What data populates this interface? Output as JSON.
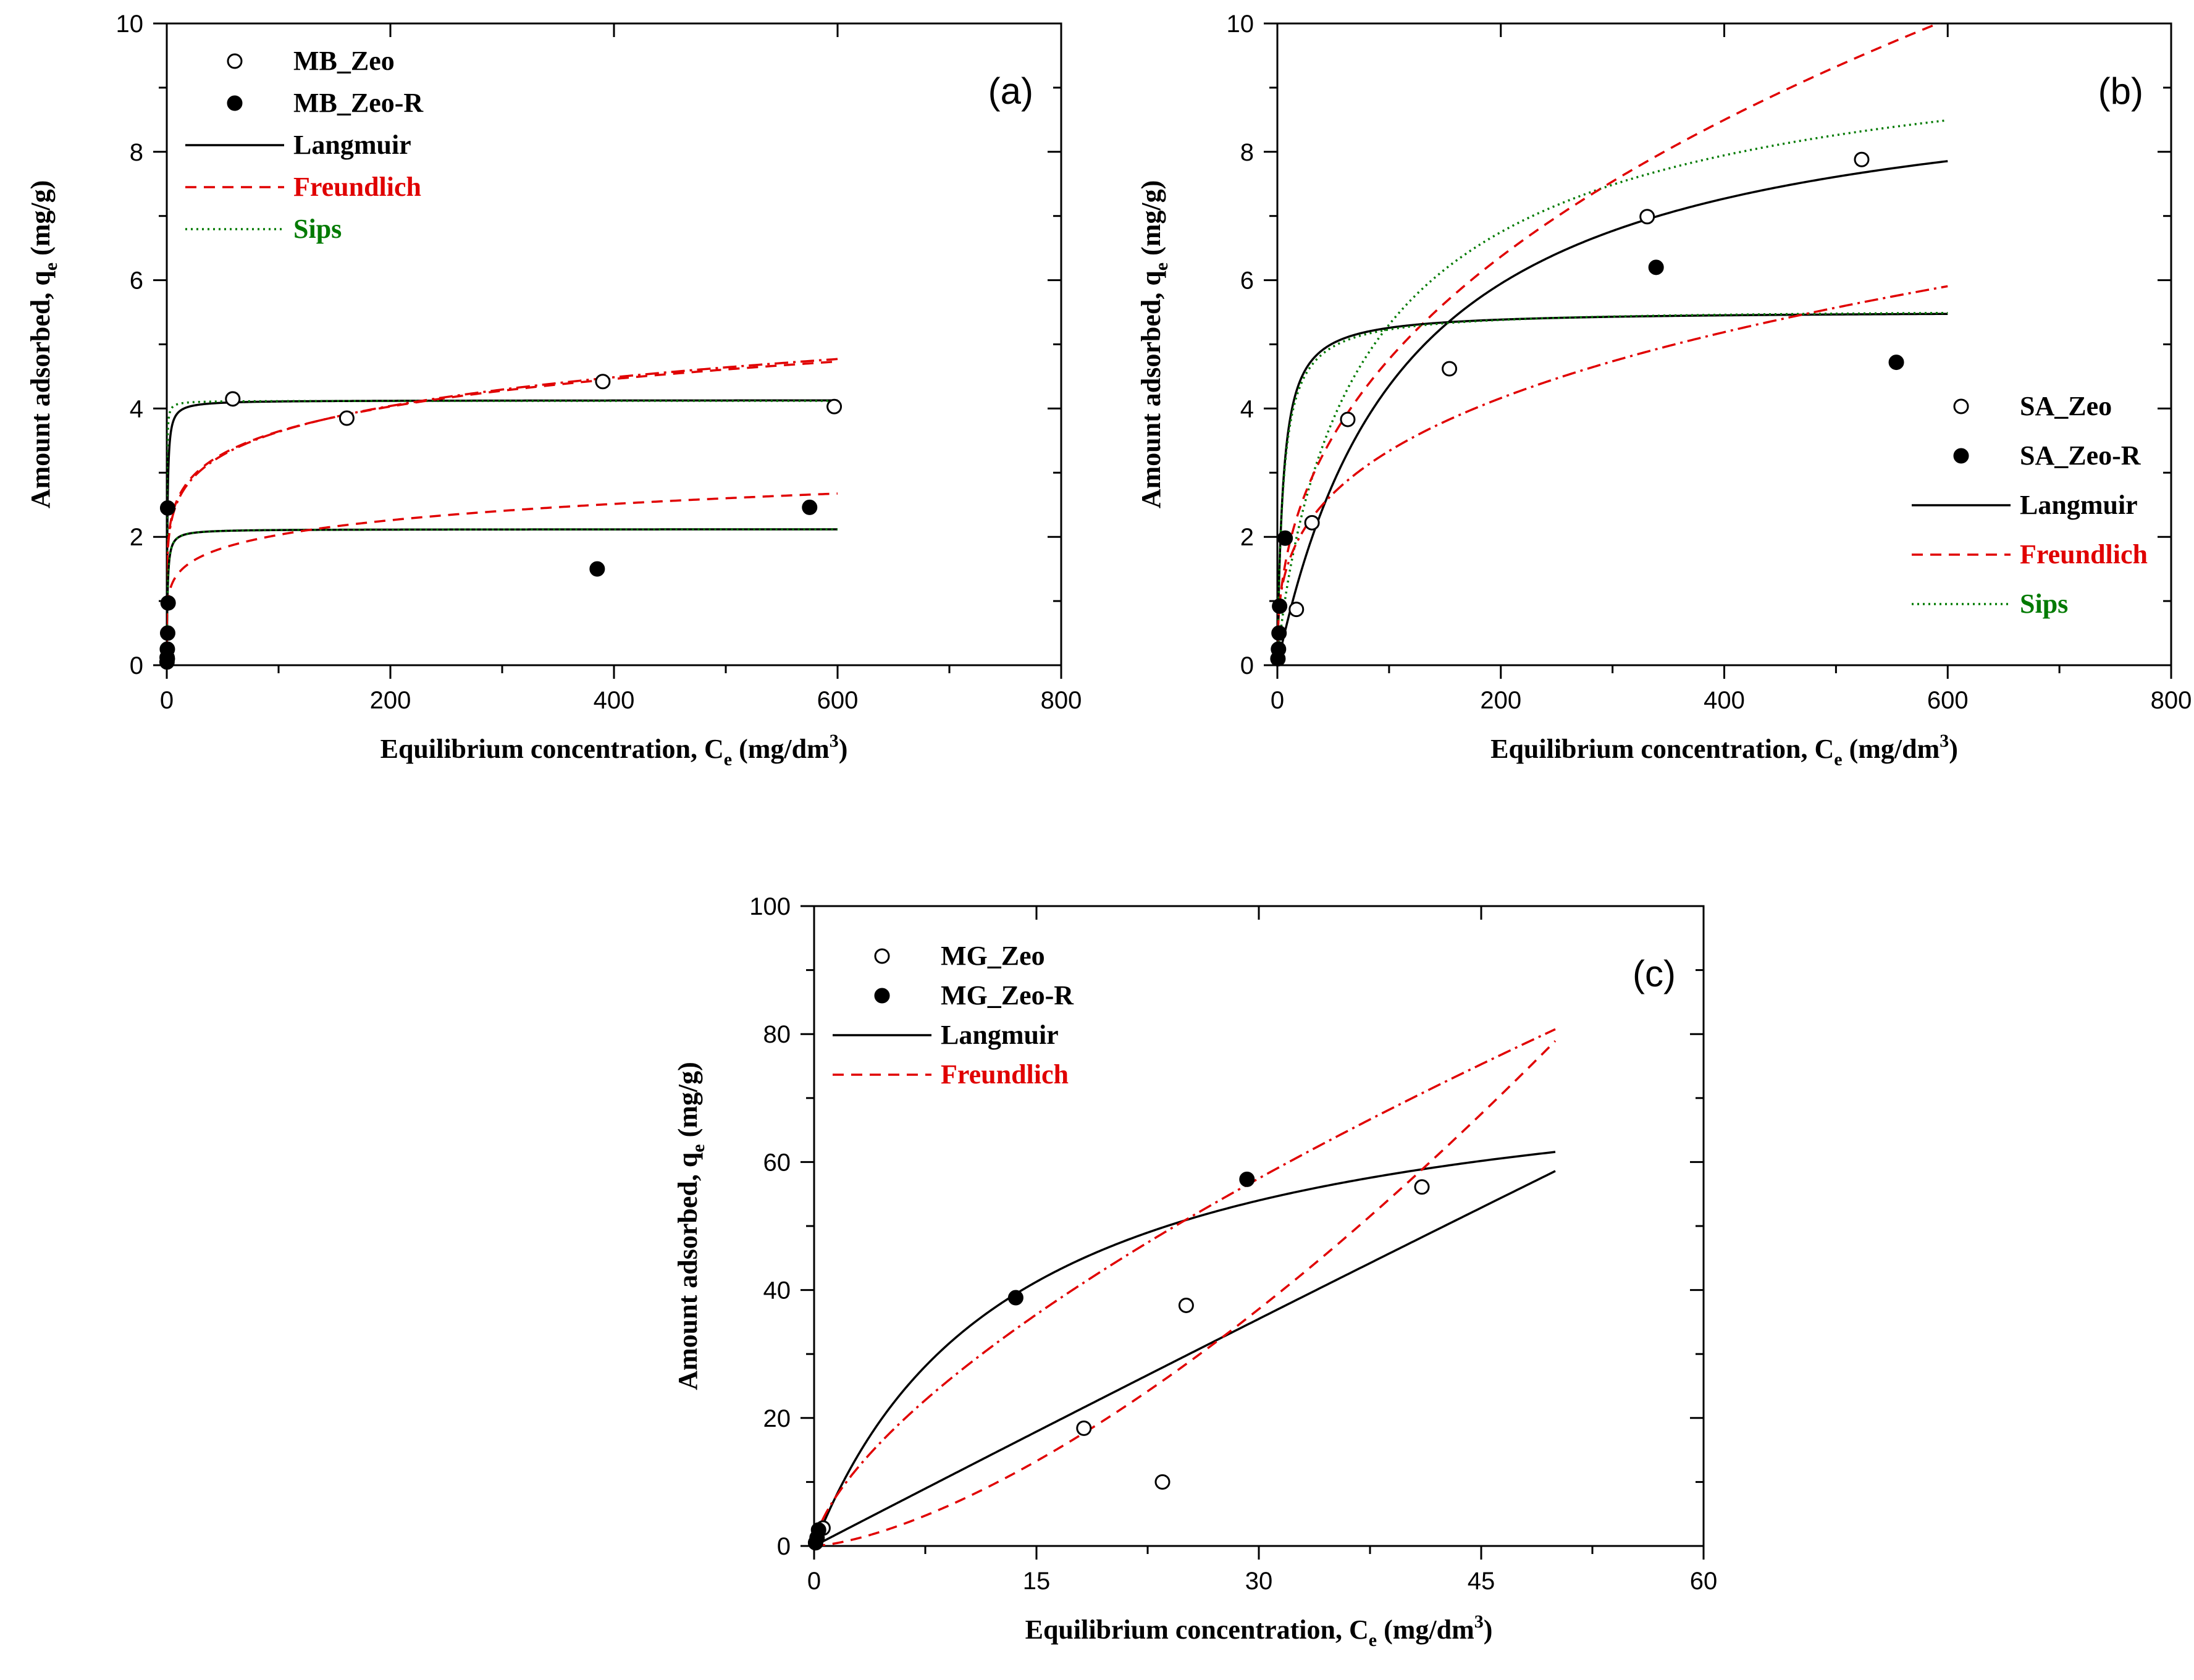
{
  "chart_data": [
    {
      "type": "scatter",
      "panel_label": "(a)",
      "xlabel": "Equilibrium concentration, C",
      "xlabel_sub": "e",
      "xlabel_unit": " (mg/dm",
      "xlabel_sup": "3",
      "xlabel_end": ")",
      "ylabel": "Amount adsorbed, q",
      "ylabel_sub": "e",
      "ylabel_unit": " (mg/g)",
      "xlim": [
        0,
        800
      ],
      "ylim": [
        0,
        10
      ],
      "xticks": [
        "0",
        "200",
        "400",
        "600",
        "800"
      ],
      "yticks": [
        "0",
        "2",
        "4",
        "6",
        "8",
        "10"
      ],
      "legend_position": "top-left",
      "legend": [
        {
          "label": "MB_Zeo",
          "kind": "open-marker",
          "color": "#000000"
        },
        {
          "label": "MB_Zeo-R",
          "kind": "filled-marker",
          "color": "#000000"
        },
        {
          "label": "Langmuir",
          "kind": "solid-line",
          "color": "#000000"
        },
        {
          "label": "Freundlich",
          "kind": "dashed-line",
          "color": "#e00000"
        },
        {
          "label": "Sips",
          "kind": "dotted-line",
          "color": "#007a00"
        }
      ],
      "series": [
        {
          "name": "MB_Zeo",
          "marker": "open",
          "x": [
            0.5,
            59,
            161,
            390,
            597
          ],
          "y": [
            0.1,
            4.15,
            3.85,
            4.42,
            4.03
          ]
        },
        {
          "name": "MB_Zeo-R",
          "marker": "filled",
          "x": [
            0.2,
            0.3,
            0.5,
            0.8,
            1.2,
            0.8,
            575,
            385
          ],
          "y": [
            0.05,
            0.12,
            0.25,
            0.5,
            0.97,
            2.45,
            2.46,
            1.5
          ]
        }
      ],
      "fits": [
        {
          "name": "Langmuir",
          "model": "langmuir",
          "params": {
            "qm": 4.13,
            "K": 2.0
          },
          "color": "#000000",
          "dash": ""
        },
        {
          "name": "Sips",
          "model": "sips",
          "params": {
            "qm": 4.12,
            "K": 8.0,
            "n": 1.0
          },
          "color": "#007a00",
          "dash": "3 6"
        },
        {
          "name": "Freundlich",
          "model": "freundlich",
          "params": {
            "K": 1.86,
            "n": 6.85
          },
          "color": "#e00000",
          "dash": "18 12"
        },
        {
          "name": "Freundlich",
          "model": "freundlich",
          "params": {
            "K": 1.81,
            "n": 6.6
          },
          "color": "#e00000",
          "dash": "22 8 4 8"
        },
        {
          "name": "Langmuir",
          "model": "langmuir",
          "params": {
            "qm": 2.12,
            "K": 1.5
          },
          "color": "#000000",
          "dash": ""
        },
        {
          "name": "Sips",
          "model": "sips",
          "params": {
            "qm": 2.12,
            "K": 1.5,
            "n": 1.0
          },
          "color": "#007a00",
          "dash": "3 6"
        },
        {
          "name": "Freundlich",
          "model": "freundlich",
          "params": {
            "K": 1.0,
            "n": 6.5
          },
          "color": "#e00000",
          "dash": "18 12"
        }
      ]
    },
    {
      "type": "scatter",
      "panel_label": "(b)",
      "xlabel": "Equilibrium concentration, C",
      "xlabel_sub": "e",
      "xlabel_unit": " (mg/dm",
      "xlabel_sup": "3",
      "xlabel_end": ")",
      "ylabel": "Amount adsorbed, q",
      "ylabel_sub": "e",
      "ylabel_unit": " (mg/g)",
      "xlim": [
        0,
        800
      ],
      "ylim": [
        0,
        10
      ],
      "xticks": [
        "0",
        "200",
        "400",
        "600",
        "800"
      ],
      "yticks": [
        "0",
        "2",
        "4",
        "6",
        "8",
        "10"
      ],
      "legend_position": "bottom-right",
      "legend": [
        {
          "label": "SA_Zeo",
          "kind": "open-marker",
          "color": "#000000"
        },
        {
          "label": "SA_Zeo-R",
          "kind": "filled-marker",
          "color": "#000000"
        },
        {
          "label": "Langmuir",
          "kind": "solid-line",
          "color": "#000000"
        },
        {
          "label": "Freundlich",
          "kind": "dashed-line",
          "color": "#e00000"
        },
        {
          "label": "Sips",
          "kind": "dotted-line",
          "color": "#007a00"
        }
      ],
      "series": [
        {
          "name": "SA_Zeo",
          "marker": "open",
          "x": [
            17,
            31,
            63,
            154,
            331,
            523
          ],
          "y": [
            0.87,
            2.22,
            3.83,
            4.62,
            6.99,
            7.88
          ]
        },
        {
          "name": "SA_Zeo-R",
          "marker": "filled",
          "x": [
            0.5,
            1.0,
            1.5,
            2.0,
            7,
            339,
            554
          ],
          "y": [
            0.1,
            0.25,
            0.5,
            0.92,
            1.98,
            6.2,
            4.72
          ]
        }
      ],
      "fits": [
        {
          "name": "Langmuir",
          "model": "langmuir",
          "params": {
            "qm": 9.36,
            "K": 0.0087
          },
          "color": "#000000",
          "dash": ""
        },
        {
          "name": "Sips",
          "model": "sips",
          "params": {
            "qm": 10.2,
            "K": 0.011,
            "n": 0.85
          },
          "color": "#007a00",
          "dash": "3 6"
        },
        {
          "name": "Freundlich",
          "model": "freundlich",
          "params": {
            "K": 0.7,
            "n": 2.4
          },
          "color": "#e00000",
          "dash": "18 12"
        },
        {
          "name": "Langmuir",
          "model": "langmuir",
          "params": {
            "qm": 5.52,
            "K": 0.2
          },
          "color": "#000000",
          "dash": ""
        },
        {
          "name": "Sips",
          "model": "sips",
          "params": {
            "qm": 5.55,
            "K": 0.19,
            "n": 0.95
          },
          "color": "#007a00",
          "dash": "3 6"
        },
        {
          "name": "Freundlich",
          "model": "freundlich",
          "params": {
            "K": 0.77,
            "n": 3.14
          },
          "color": "#e00000",
          "dash": "22 8 4 8"
        }
      ]
    },
    {
      "type": "scatter",
      "panel_label": "(c)",
      "xlabel": "Equilibrium concentration, C",
      "xlabel_sub": "e",
      "xlabel_unit": " (mg/dm",
      "xlabel_sup": "3",
      "xlabel_end": ")",
      "ylabel": "Amount adsorbed, q",
      "ylabel_sub": "e",
      "ylabel_unit": " (mg/g)",
      "xlim": [
        0,
        60
      ],
      "ylim": [
        0,
        100
      ],
      "xticks": [
        "0",
        "15",
        "30",
        "45",
        "60"
      ],
      "yticks": [
        "0",
        "20",
        "40",
        "60",
        "80",
        "100"
      ],
      "legend_position": "top-left",
      "legend": [
        {
          "label": "MG_Zeo",
          "kind": "open-marker",
          "color": "#000000"
        },
        {
          "label": "MG_Zeo-R",
          "kind": "filled-marker",
          "color": "#000000"
        },
        {
          "label": "Langmuir",
          "kind": "solid-line",
          "color": "#000000"
        },
        {
          "label": "Freundlich",
          "kind": "dashed-line",
          "color": "#e00000"
        }
      ],
      "series": [
        {
          "name": "MG_Zeo",
          "marker": "open",
          "x": [
            0.6,
            18.2,
            23.5,
            25.1,
            41.0
          ],
          "y": [
            2.8,
            18.4,
            10.0,
            37.6,
            56.1
          ]
        },
        {
          "name": "MG_Zeo-R",
          "marker": "filled",
          "x": [
            0.1,
            0.2,
            0.3,
            13.6,
            29.2
          ],
          "y": [
            0.5,
            1.3,
            2.5,
            38.8,
            57.3
          ]
        }
      ],
      "fits": [
        {
          "name": "Langmuir",
          "model": "langmuir",
          "params": {
            "qm": 78.0,
            "K": 0.075
          },
          "color": "#000000",
          "dash": ""
        },
        {
          "name": "Freundlich",
          "model": "freundlich",
          "params": {
            "K": 5.95,
            "n": 1.5
          },
          "color": "#e00000",
          "dash": "22 8 4 8"
        },
        {
          "name": "Langmuir",
          "model": "langmuir",
          "params": {
            "qm": 2500,
            "K": 0.00048
          },
          "color": "#000000",
          "dash": ""
        },
        {
          "name": "Freundlich",
          "model": "freundlich",
          "params": {
            "K": 0.24,
            "n": 0.675
          },
          "color": "#e00000",
          "dash": "18 12"
        }
      ]
    }
  ]
}
